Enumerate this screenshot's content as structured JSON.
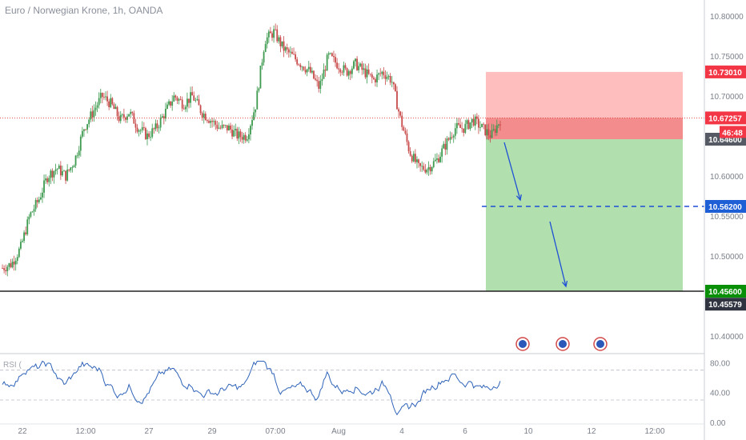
{
  "chart_title": "Euro / Norwegian Krone, 1h, OANDA",
  "rsi_label": "RSI (",
  "colors": {
    "up": "#26a69a",
    "down": "#ef5350",
    "candle_up": "#3d9a4f",
    "candle_down": "#c84a4a",
    "loss_zone": "#ffb3b3",
    "loss_zone_dark": "#f08080",
    "profit_zone": "#a8dca5",
    "target_line": "#1e4fd6",
    "rsi_line": "#2f63b8",
    "price_line": "#e53935"
  },
  "chart_data": [
    {
      "type": "candlestick",
      "symbol": "EUR/NOK",
      "timeframe": "1h",
      "ylim": [
        10.38,
        10.82
      ],
      "y_ticks": [
        "10.80000",
        "10.75000",
        "10.70000",
        "10.60000",
        "10.55000",
        "10.50000",
        "10.40000"
      ],
      "x_ticks": [
        "22",
        "12:00",
        "27",
        "29",
        "07:00",
        "Aug",
        "4",
        "6",
        "10",
        "12",
        "12:00"
      ],
      "path_close": [
        10.485,
        10.49,
        10.51,
        10.55,
        10.57,
        10.6,
        10.61,
        10.6,
        10.62,
        10.66,
        10.68,
        10.7,
        10.69,
        10.67,
        10.68,
        10.66,
        10.65,
        10.66,
        10.68,
        10.7,
        10.69,
        10.7,
        10.68,
        10.67,
        10.66,
        10.66,
        10.65,
        10.65,
        10.69,
        10.77,
        10.78,
        10.76,
        10.75,
        10.74,
        10.73,
        10.71,
        10.75,
        10.74,
        10.73,
        10.74,
        10.73,
        10.72,
        10.73,
        10.72,
        10.67,
        10.63,
        10.61,
        10.61,
        10.62,
        10.64,
        10.66,
        10.66,
        10.67,
        10.66,
        10.65,
        10.67
      ],
      "price_levels": {
        "take_profit": "10.73010",
        "current": "10.67257",
        "countdown": "46:48",
        "entry": "10.64600",
        "target": "10.56200",
        "stop": "10.45600",
        "low": "10.45579"
      }
    },
    {
      "type": "line",
      "name": "RSI",
      "ylim": [
        0,
        90
      ],
      "y_ticks": [
        "80.00",
        "40.00",
        "0.00"
      ],
      "bands": [
        70,
        30
      ]
    }
  ]
}
